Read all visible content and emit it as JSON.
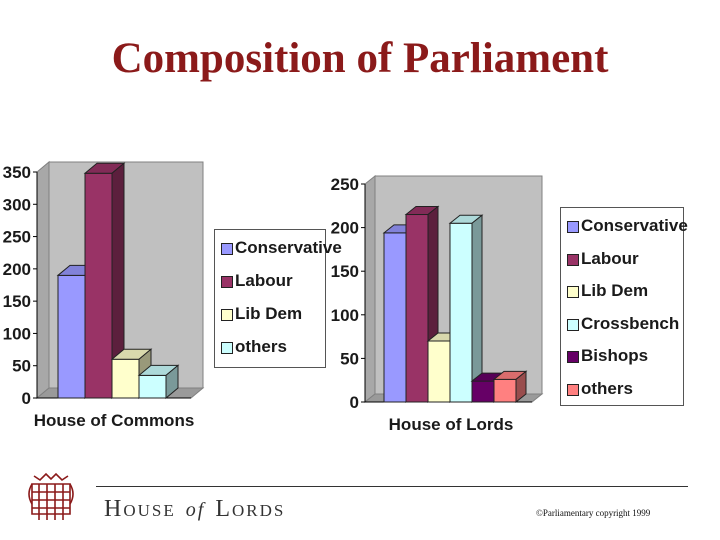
{
  "title": "Composition of Parliament",
  "footer": {
    "brand_h": "H",
    "brand_ouse": "OUSE",
    "brand_of": "of",
    "brand_l": "L",
    "brand_ords": "ORDS",
    "copyright": "©Parliamentary copyright 1999",
    "crest_icon": "portcullis-icon",
    "accent_color": "#8b1a1a"
  },
  "chart_data": [
    {
      "type": "bar",
      "categories": [
        "House of Commons"
      ],
      "xlabel": "House of Commons",
      "ylim": [
        0,
        350
      ],
      "yticks": [
        0,
        50,
        100,
        150,
        200,
        250,
        300,
        350
      ],
      "legend_position": "right",
      "grid": false,
      "style": "3d",
      "series": [
        {
          "name": "Conservative",
          "values": [
            190
          ],
          "color": "#9999ff"
        },
        {
          "name": "Labour",
          "values": [
            348
          ],
          "color": "#993366"
        },
        {
          "name": "Lib Dem",
          "values": [
            60
          ],
          "color": "#ffffcc"
        },
        {
          "name": "others",
          "values": [
            35
          ],
          "color": "#ccffff"
        }
      ]
    },
    {
      "type": "bar",
      "categories": [
        "House of Lords"
      ],
      "xlabel": "House of Lords",
      "ylim": [
        0,
        250
      ],
      "yticks": [
        0,
        50,
        100,
        150,
        200,
        250
      ],
      "legend_position": "right",
      "grid": false,
      "style": "3d",
      "series": [
        {
          "name": "Conservative",
          "values": [
            194
          ],
          "color": "#9999ff"
        },
        {
          "name": "Labour",
          "values": [
            215
          ],
          "color": "#993366"
        },
        {
          "name": "Lib Dem",
          "values": [
            70
          ],
          "color": "#ffffcc"
        },
        {
          "name": "Crossbench",
          "values": [
            205
          ],
          "color": "#ccffff"
        },
        {
          "name": "Bishops",
          "values": [
            24
          ],
          "color": "#660066"
        },
        {
          "name": "others",
          "values": [
            26
          ],
          "color": "#ff8080"
        }
      ]
    }
  ]
}
